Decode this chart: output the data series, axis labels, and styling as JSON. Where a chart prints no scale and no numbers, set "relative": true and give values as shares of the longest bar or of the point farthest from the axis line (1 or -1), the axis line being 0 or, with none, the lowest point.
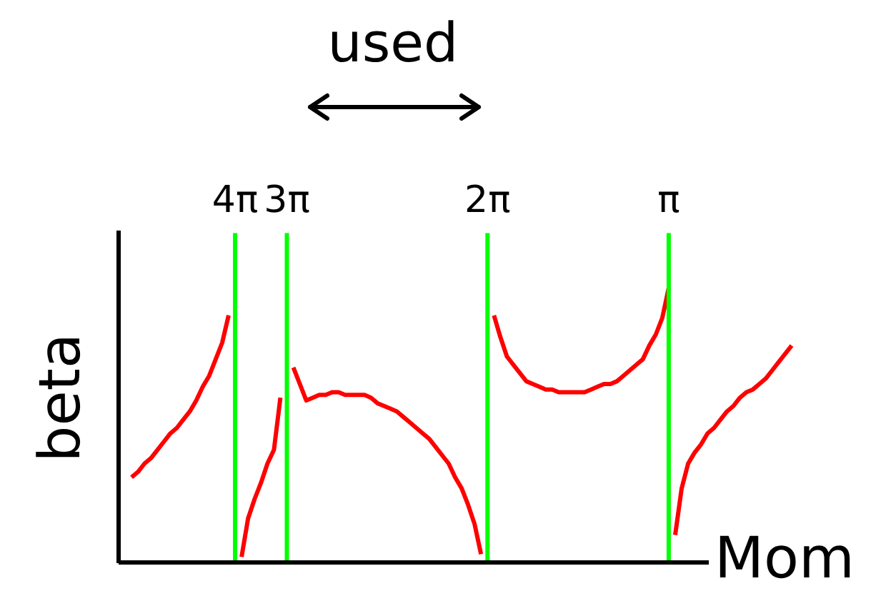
{
  "chart_data": {
    "type": "line",
    "relative": true,
    "xlabel": "Mom",
    "ylabel": "beta",
    "annotations": [
      "used"
    ],
    "legend": false,
    "grid": false,
    "tick_labels": "x",
    "marker": "none",
    "categories": [
      null,
      null,
      null,
      null,
      null,
      null,
      null,
      null,
      null,
      null,
      null,
      null,
      null,
      null,
      null,
      null,
      null,
      null,
      "4π",
      null,
      null,
      null,
      null,
      null,
      null,
      null,
      "3π",
      null,
      null,
      null,
      null,
      null,
      null,
      null,
      null,
      null,
      null,
      null,
      null,
      null,
      null,
      null,
      null,
      null,
      null,
      null,
      null,
      null,
      null,
      null,
      null,
      null,
      null,
      null,
      null,
      null,
      null,
      "2π",
      null,
      null,
      null,
      null,
      null,
      null,
      null,
      null,
      null,
      null,
      null,
      null,
      null,
      null,
      null,
      null,
      null,
      null,
      null,
      null,
      null,
      null,
      null,
      null,
      null,
      null,
      null,
      "π",
      null,
      null,
      null,
      null,
      null,
      null,
      null,
      null,
      null,
      null,
      null,
      null,
      null,
      null,
      null,
      null,
      null,
      null,
      null
    ],
    "series": [
      {
        "color": "#ff0000",
        "values": [
          null,
          null,
          0.31,
          0.33,
          0.36,
          0.38,
          0.41,
          0.44,
          0.47,
          0.49,
          0.52,
          0.55,
          0.59,
          0.64,
          0.68,
          0.74,
          0.8,
          0.9,
          null,
          null,
          null,
          null,
          null,
          null,
          null,
          null,
          null,
          null,
          null,
          null,
          null,
          null,
          null,
          null,
          null,
          null,
          null,
          null,
          null,
          null,
          null,
          null,
          null,
          null,
          null,
          null,
          null,
          null,
          null,
          null,
          null,
          null,
          null,
          null,
          null,
          null,
          null,
          null,
          null,
          null,
          null,
          null,
          null,
          null,
          null,
          null,
          null,
          null,
          null,
          null,
          null,
          null,
          null,
          null,
          null,
          null,
          null,
          null,
          null,
          null,
          null,
          null,
          null,
          null,
          null,
          null,
          null,
          null,
          null,
          null,
          null,
          null,
          null,
          null,
          null,
          null,
          null,
          null,
          null,
          null,
          null,
          null,
          null,
          null,
          null
        ]
      },
      {
        "color": "#ff0000",
        "values": [
          null,
          null,
          null,
          null,
          null,
          null,
          null,
          null,
          null,
          null,
          null,
          null,
          null,
          null,
          null,
          null,
          null,
          null,
          null,
          0.02,
          0.16,
          0.23,
          0.29,
          0.36,
          0.41,
          0.6,
          null,
          null,
          null,
          null,
          null,
          null,
          null,
          null,
          null,
          null,
          null,
          null,
          null,
          null,
          null,
          null,
          null,
          null,
          null,
          null,
          null,
          null,
          null,
          null,
          null,
          null,
          null,
          null,
          null,
          null,
          null,
          null,
          null,
          null,
          null,
          null,
          null,
          null,
          null,
          null,
          null,
          null,
          null,
          null,
          null,
          null,
          null,
          null,
          null,
          null,
          null,
          null,
          null,
          null,
          null,
          null,
          null,
          null,
          null,
          null,
          null,
          null,
          null,
          null,
          null,
          null,
          null,
          null,
          null,
          null,
          null,
          null,
          null,
          null,
          null,
          null,
          null,
          null,
          null
        ]
      },
      {
        "color": "#ff0000",
        "values": [
          null,
          null,
          null,
          null,
          null,
          null,
          null,
          null,
          null,
          null,
          null,
          null,
          null,
          null,
          null,
          null,
          null,
          null,
          null,
          null,
          null,
          null,
          null,
          null,
          null,
          null,
          null,
          0.71,
          0.65,
          0.59,
          0.6,
          0.61,
          0.61,
          0.62,
          0.62,
          0.61,
          0.61,
          0.61,
          0.61,
          0.6,
          0.58,
          0.57,
          0.56,
          0.55,
          0.53,
          0.51,
          0.49,
          0.47,
          0.45,
          0.42,
          0.39,
          0.36,
          0.31,
          0.27,
          0.21,
          0.14,
          0.03,
          null,
          null,
          null,
          null,
          null,
          null,
          null,
          null,
          null,
          null,
          null,
          null,
          null,
          null,
          null,
          null,
          null,
          null,
          null,
          null,
          null,
          null,
          null,
          null,
          null,
          null,
          null,
          null,
          null,
          null,
          null,
          null,
          null,
          null,
          null,
          null,
          null,
          null,
          null,
          null,
          null,
          null,
          null,
          null,
          null,
          null,
          null,
          null
        ]
      },
      {
        "color": "#ff0000",
        "values": [
          null,
          null,
          null,
          null,
          null,
          null,
          null,
          null,
          null,
          null,
          null,
          null,
          null,
          null,
          null,
          null,
          null,
          null,
          null,
          null,
          null,
          null,
          null,
          null,
          null,
          null,
          null,
          null,
          null,
          null,
          null,
          null,
          null,
          null,
          null,
          null,
          null,
          null,
          null,
          null,
          null,
          null,
          null,
          null,
          null,
          null,
          null,
          null,
          null,
          null,
          null,
          null,
          null,
          null,
          null,
          null,
          null,
          null,
          0.9,
          0.82,
          0.75,
          0.72,
          0.69,
          0.66,
          0.65,
          0.64,
          0.63,
          0.63,
          0.62,
          0.62,
          0.62,
          0.62,
          0.62,
          0.63,
          0.64,
          0.65,
          0.65,
          0.66,
          0.68,
          0.7,
          0.72,
          0.74,
          0.79,
          0.83,
          0.89,
          1,
          null,
          null,
          null,
          null,
          null,
          null,
          null,
          null,
          null,
          null,
          null,
          null,
          null,
          null,
          null,
          null,
          null,
          null,
          null
        ]
      },
      {
        "color": "#ff0000",
        "values": [
          null,
          null,
          null,
          null,
          null,
          null,
          null,
          null,
          null,
          null,
          null,
          null,
          null,
          null,
          null,
          null,
          null,
          null,
          null,
          null,
          null,
          null,
          null,
          null,
          null,
          null,
          null,
          null,
          null,
          null,
          null,
          null,
          null,
          null,
          null,
          null,
          null,
          null,
          null,
          null,
          null,
          null,
          null,
          null,
          null,
          null,
          null,
          null,
          null,
          null,
          null,
          null,
          null,
          null,
          null,
          null,
          null,
          null,
          null,
          null,
          null,
          null,
          null,
          null,
          null,
          null,
          null,
          null,
          null,
          null,
          null,
          null,
          null,
          null,
          null,
          null,
          null,
          null,
          null,
          null,
          null,
          null,
          null,
          null,
          null,
          null,
          0.1,
          0.27,
          0.36,
          0.4,
          0.43,
          0.47,
          0.49,
          0.52,
          0.55,
          0.57,
          0.6,
          0.62,
          0.63,
          0.65,
          0.67,
          0.7,
          0.73,
          0.76,
          0.79
        ]
      }
    ],
    "ref_lines": [
      {
        "axis": "x",
        "value": "4π",
        "color": "#00ff00"
      },
      {
        "axis": "x",
        "value": "3π",
        "color": "#00ff00"
      },
      {
        "axis": "x",
        "value": "2π",
        "color": "#00ff00"
      },
      {
        "axis": "x",
        "value": "π",
        "color": "#00ff00"
      }
    ]
  }
}
